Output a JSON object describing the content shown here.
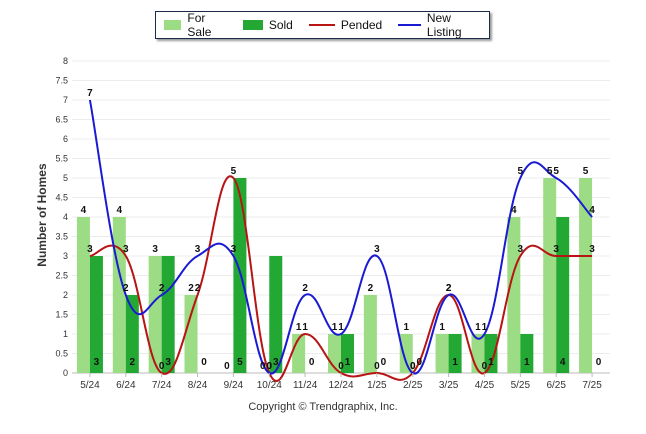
{
  "chart_data": {
    "type": "bar",
    "categories": [
      "5/24",
      "6/24",
      "7/24",
      "8/24",
      "9/24",
      "10/24",
      "11/24",
      "12/24",
      "1/25",
      "2/25",
      "3/25",
      "4/25",
      "5/25",
      "6/25",
      "7/25"
    ],
    "ylabel": "Number of Homes",
    "xlabel": "",
    "ylim": [
      0,
      8
    ],
    "yticks": [
      "0",
      "0.5",
      "1",
      "1.5",
      "2",
      "2.5",
      "3",
      "3.5",
      "4",
      "4.5",
      "5",
      "5.5",
      "6",
      "6.5",
      "7",
      "7.5",
      "8"
    ],
    "grid": true,
    "legend_position": "top-center",
    "series": [
      {
        "name": "For Sale",
        "kind": "bar",
        "color": "#9cdc85",
        "values": [
          4,
          4,
          3,
          2,
          0,
          0,
          1,
          1,
          2,
          1,
          1,
          1,
          4,
          5,
          5
        ]
      },
      {
        "name": "Sold",
        "kind": "bar",
        "color": "#22a833",
        "values": [
          3,
          2,
          3,
          0,
          5,
          3,
          0,
          1,
          0,
          0,
          1,
          1,
          1,
          4,
          0
        ]
      },
      {
        "name": "Pended",
        "kind": "line",
        "color": "#b81414",
        "values": [
          3,
          3,
          0,
          2,
          5,
          0,
          1,
          0,
          0,
          0,
          2,
          0,
          3,
          3,
          3
        ]
      },
      {
        "name": "New Listing",
        "kind": "line",
        "color": "#1a1ad4",
        "values": [
          7,
          2,
          2,
          3,
          3,
          0,
          2,
          1,
          3,
          0,
          2,
          1,
          5,
          5,
          4
        ]
      }
    ],
    "copyright": "Copyright © Trendgraphix, Inc."
  }
}
